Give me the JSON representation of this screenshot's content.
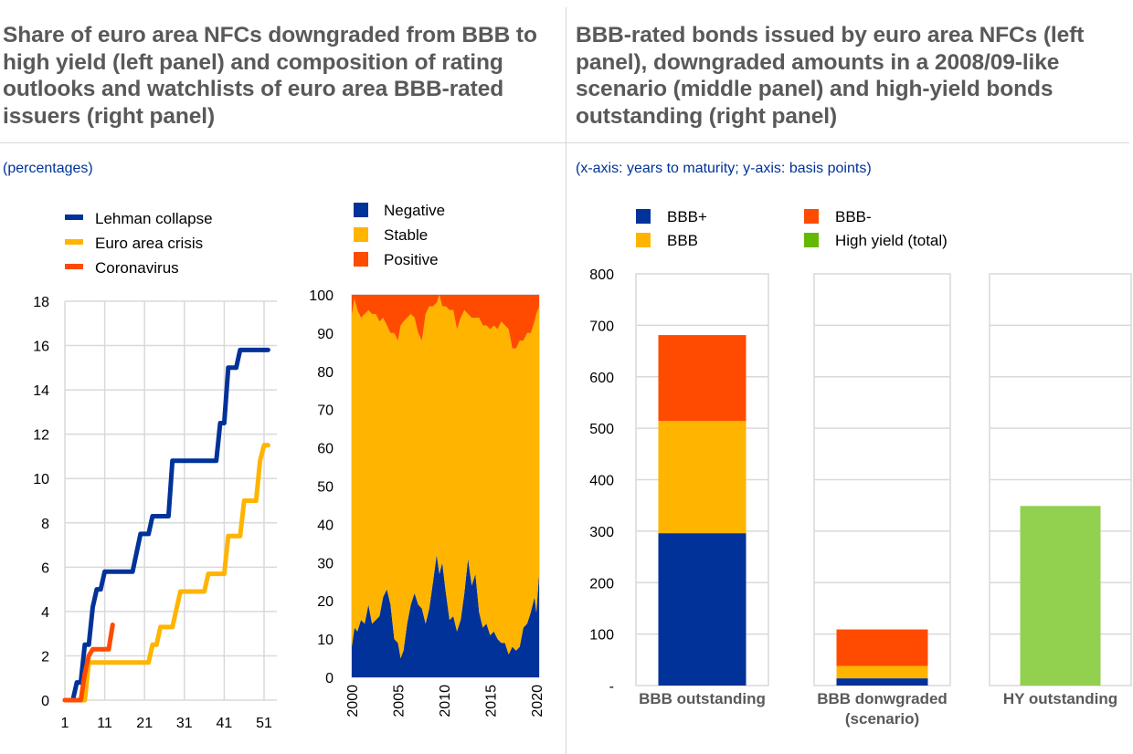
{
  "left_panel": {
    "title": "Share of euro area NFCs downgraded from BBB to high yield (left panel) and composition of rating outlooks and watchlists of euro area BBB-rated issuers (right panel)",
    "subtitle": "(percentages)"
  },
  "right_panel": {
    "title": "BBB-rated bonds issued by euro area NFCs (left panel), downgraded amounts in a 2008/09-like scenario (middle panel) and high-yield bonds outstanding (right panel)",
    "subtitle": "(x-axis: years to maturity; y-axis: basis points)"
  },
  "colors": {
    "dark_blue": "#003299",
    "yellow": "#ffb400",
    "orange": "#ff4b00",
    "green": "#92d050",
    "legend_green": "#65b800",
    "grid": "#d9d9d9",
    "title_grey": "#595959"
  },
  "chart_data": [
    {
      "id": "downgrade-lines",
      "type": "line",
      "title": "",
      "xlabel": "",
      "ylabel": "",
      "xlim": [
        1,
        54
      ],
      "ylim": [
        0,
        18
      ],
      "xticks": [
        1,
        11,
        21,
        31,
        41,
        51
      ],
      "yticks": [
        0,
        2,
        4,
        6,
        8,
        10,
        12,
        14,
        16,
        18
      ],
      "grid": true,
      "legend_position": "top",
      "series": [
        {
          "name": "Lehman collapse",
          "color": "#003299",
          "points": [
            [
              1,
              0
            ],
            [
              3,
              0
            ],
            [
              4,
              0.8
            ],
            [
              5,
              0.8
            ],
            [
              6,
              2.5
            ],
            [
              7,
              2.5
            ],
            [
              8,
              4.2
            ],
            [
              9,
              5.0
            ],
            [
              10,
              5.0
            ],
            [
              11,
              5.8
            ],
            [
              18,
              5.8
            ],
            [
              20,
              7.5
            ],
            [
              22,
              7.5
            ],
            [
              23,
              8.3
            ],
            [
              27,
              8.3
            ],
            [
              28,
              10.8
            ],
            [
              39,
              10.8
            ],
            [
              40,
              12.5
            ],
            [
              41,
              12.5
            ],
            [
              42,
              15.0
            ],
            [
              44,
              15.0
            ],
            [
              45,
              15.8
            ],
            [
              52,
              15.8
            ]
          ]
        },
        {
          "name": "Euro area crisis",
          "color": "#ffb400",
          "points": [
            [
              1,
              0
            ],
            [
              6,
              0
            ],
            [
              7,
              1.7
            ],
            [
              22,
              1.7
            ],
            [
              23,
              2.5
            ],
            [
              24,
              2.5
            ],
            [
              25,
              3.3
            ],
            [
              28,
              3.3
            ],
            [
              30,
              4.9
            ],
            [
              36,
              4.9
            ],
            [
              37,
              5.7
            ],
            [
              41,
              5.7
            ],
            [
              42,
              7.4
            ],
            [
              45,
              7.4
            ],
            [
              46,
              9.0
            ],
            [
              49,
              9.0
            ],
            [
              50,
              10.8
            ],
            [
              51,
              11.5
            ],
            [
              52,
              11.5
            ]
          ]
        },
        {
          "name": "Coronavirus",
          "color": "#ff4b00",
          "points": [
            [
              1,
              0
            ],
            [
              5,
              0
            ],
            [
              6,
              1.2
            ],
            [
              7,
              2.0
            ],
            [
              8,
              2.3
            ],
            [
              12,
              2.3
            ],
            [
              13,
              3.4
            ]
          ]
        }
      ]
    },
    {
      "id": "outlook-composition",
      "type": "area",
      "stacked": true,
      "title": "",
      "xlabel": "",
      "ylabel": "",
      "xlim": [
        2000,
        2020.3
      ],
      "ylim": [
        0,
        100
      ],
      "xticks": [
        "2000",
        "2005",
        "2010",
        "2015",
        "2020"
      ],
      "yticks": [
        0,
        10,
        20,
        30,
        40,
        50,
        60,
        70,
        80,
        90,
        100
      ],
      "grid": false,
      "legend_position": "top",
      "x": [
        2000.0,
        2000.3,
        2000.6,
        2001.0,
        2001.4,
        2001.8,
        2002.2,
        2002.6,
        2003.0,
        2003.4,
        2003.8,
        2004.2,
        2004.6,
        2005.0,
        2005.3,
        2005.6,
        2006.0,
        2006.4,
        2006.8,
        2007.2,
        2007.6,
        2008.0,
        2008.4,
        2008.8,
        2009.2,
        2009.5,
        2009.8,
        2010.2,
        2010.6,
        2011.0,
        2011.4,
        2011.8,
        2012.2,
        2012.6,
        2013.0,
        2013.4,
        2013.8,
        2014.2,
        2014.6,
        2015.0,
        2015.4,
        2015.8,
        2016.2,
        2016.6,
        2017.0,
        2017.4,
        2017.8,
        2018.2,
        2018.6,
        2019.0,
        2019.4,
        2019.8,
        2020.0,
        2020.3
      ],
      "series": [
        {
          "name": "Negative",
          "color": "#003299",
          "values": [
            8,
            13,
            12,
            15,
            14,
            19,
            14,
            15,
            16,
            21,
            23,
            19,
            10,
            9,
            5,
            7,
            14,
            19,
            22,
            19,
            18,
            14,
            18,
            25,
            32,
            27,
            30,
            22,
            15,
            16,
            12,
            15,
            22,
            31,
            24,
            27,
            17,
            13,
            14,
            11,
            12,
            10,
            9,
            9,
            6,
            8,
            7,
            8,
            13,
            14,
            17,
            21,
            17,
            27
          ]
        },
        {
          "name": "Stable",
          "color": "#ffb400",
          "values": [
            87,
            86,
            84,
            79,
            81,
            77,
            81,
            80,
            77,
            73,
            69,
            71,
            80,
            79,
            87,
            86,
            80,
            76,
            72,
            71,
            70,
            81,
            79,
            72,
            66,
            73,
            67,
            75,
            81,
            80,
            79,
            79,
            74,
            64,
            70,
            67,
            77,
            79,
            78,
            80,
            80,
            81,
            84,
            83,
            85,
            78,
            79,
            80,
            75,
            76,
            73,
            72,
            78,
            70
          ]
        },
        {
          "name": "Positive",
          "color": "#ff4b00",
          "values": [
            5,
            1,
            4,
            6,
            5,
            4,
            5,
            5,
            7,
            6,
            8,
            10,
            10,
            12,
            8,
            7,
            6,
            5,
            6,
            10,
            12,
            5,
            3,
            3,
            2,
            0,
            3,
            3,
            4,
            4,
            9,
            6,
            4,
            5,
            6,
            6,
            6,
            8,
            8,
            9,
            8,
            9,
            7,
            8,
            9,
            14,
            14,
            12,
            12,
            10,
            10,
            7,
            5,
            3
          ]
        }
      ]
    },
    {
      "id": "bbb-bonds-bars",
      "type": "bar",
      "stacked": true,
      "title": "",
      "xlabel": "",
      "ylabel": "",
      "ylim": [
        0,
        800
      ],
      "yticks": [
        "-",
        "100",
        "200",
        "300",
        "400",
        "500",
        "600",
        "700",
        "800"
      ],
      "grid": true,
      "legend_position": "top",
      "legend": [
        {
          "name": "BBB+",
          "color": "#003299"
        },
        {
          "name": "BBB",
          "color": "#ffb400"
        },
        {
          "name": "BBB-",
          "color": "#ff4b00"
        },
        {
          "name": "High yield (total)",
          "color": "#65b800"
        }
      ],
      "categories": [
        "BBB outstanding",
        "BBB donwgraded\n(scenario)",
        "HY outstanding"
      ],
      "category_lines": [
        [
          "BBB outstanding"
        ],
        [
          "BBB donwgraded",
          "(scenario)"
        ],
        [
          "HY outstanding"
        ]
      ],
      "series": [
        {
          "name": "BBB+",
          "color": "#003299",
          "values": [
            296,
            14,
            0
          ]
        },
        {
          "name": "BBB",
          "color": "#ffb400",
          "values": [
            218,
            24,
            0
          ]
        },
        {
          "name": "BBB-",
          "color": "#ff4b00",
          "values": [
            167,
            71,
            0
          ]
        },
        {
          "name": "High yield (total)",
          "color": "#92d050",
          "values": [
            0,
            0,
            349
          ]
        }
      ]
    }
  ]
}
